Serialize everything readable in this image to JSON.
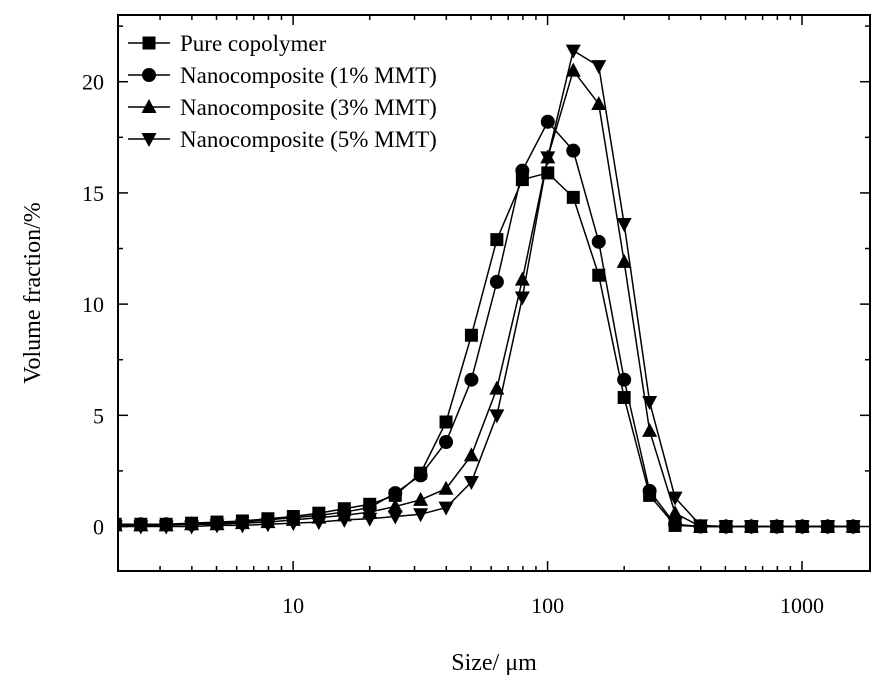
{
  "chart_data": {
    "type": "line",
    "title": "",
    "xlabel": "Size/ μm",
    "ylabel": "Volume fraction/%",
    "x_scale": "log",
    "xlim": [
      2.05,
      1850
    ],
    "ylim": [
      -2,
      23
    ],
    "x_ticks": [
      {
        "value": 10,
        "label": "10"
      },
      {
        "value": 100,
        "label": "100"
      },
      {
        "value": 1000,
        "label": "1000"
      }
    ],
    "y_ticks": [
      {
        "value": 0,
        "label": "0"
      },
      {
        "value": 5,
        "label": "5"
      },
      {
        "value": 10,
        "label": "10"
      },
      {
        "value": 15,
        "label": "15"
      },
      {
        "value": 20,
        "label": "20"
      }
    ],
    "grid": false,
    "legend_position": "top-left",
    "x": [
      2.0,
      2.52,
      3.17,
      3.99,
      5.02,
      6.32,
      7.96,
      10.02,
      12.62,
      15.89,
      20.0,
      25.2,
      31.7,
      39.9,
      50.2,
      63.2,
      79.6,
      100.2,
      126.2,
      158.9,
      200.0,
      251.8,
      317.0,
      399.1,
      502.4,
      632.5,
      796.2,
      1002.4,
      1261.9,
      1588.7
    ],
    "series": [
      {
        "name": "Pure copolymer",
        "marker": "square",
        "values": [
          0.1,
          0.1,
          0.1,
          0.15,
          0.2,
          0.25,
          0.35,
          0.45,
          0.6,
          0.8,
          1.0,
          1.4,
          2.4,
          4.7,
          8.6,
          12.9,
          15.6,
          15.9,
          14.8,
          11.3,
          5.8,
          1.4,
          0.05,
          0.0,
          0.0,
          0.0,
          0.0,
          0.0,
          0.0,
          0.0
        ]
      },
      {
        "name": "Nanocomposite (1% MMT)",
        "marker": "circle",
        "values": [
          0.1,
          0.1,
          0.1,
          0.1,
          0.15,
          0.2,
          0.3,
          0.4,
          0.5,
          0.65,
          0.85,
          1.5,
          2.3,
          3.8,
          6.6,
          11.0,
          16.0,
          18.2,
          16.9,
          12.8,
          6.6,
          1.6,
          0.1,
          0.0,
          0.0,
          0.0,
          0.0,
          0.0,
          0.0,
          0.0
        ]
      },
      {
        "name": "Nanocomposite (3% MMT)",
        "marker": "triangle-up",
        "values": [
          0.05,
          0.05,
          0.05,
          0.1,
          0.1,
          0.15,
          0.2,
          0.3,
          0.4,
          0.5,
          0.65,
          0.9,
          1.2,
          1.7,
          3.2,
          6.2,
          11.1,
          16.6,
          20.5,
          19.0,
          11.9,
          4.3,
          0.6,
          0.0,
          0.0,
          0.0,
          0.0,
          0.0,
          0.0,
          0.0
        ]
      },
      {
        "name": "Nanocomposite (5% MMT)",
        "marker": "triangle-down",
        "values": [
          0.0,
          0.0,
          0.0,
          0.0,
          0.05,
          0.05,
          0.1,
          0.15,
          0.2,
          0.3,
          0.35,
          0.45,
          0.55,
          0.85,
          2.0,
          5.0,
          10.3,
          16.6,
          21.4,
          20.7,
          13.6,
          5.6,
          1.3,
          0.05,
          0.0,
          0.0,
          0.0,
          0.0,
          0.0,
          0.0
        ]
      }
    ]
  }
}
